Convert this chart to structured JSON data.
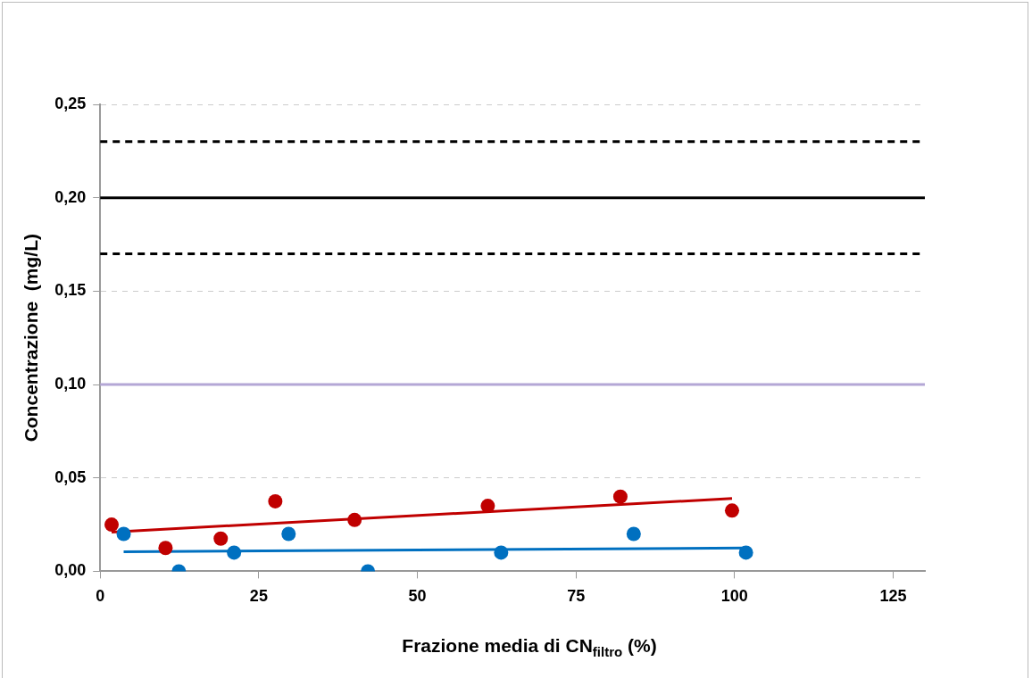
{
  "chart_data": {
    "type": "scatter",
    "xlabel": "Frazione media di CN$_{filtro}$ (%)",
    "ylabel": "Concentrazione  (mg/L)",
    "xlim": [
      0,
      130
    ],
    "xticks": [
      0,
      25,
      50,
      75,
      100,
      125
    ],
    "ylim": [
      0,
      0.25
    ],
    "yticks": [
      {
        "value": 0,
        "label": "0,00"
      },
      {
        "value": 0.05,
        "label": "0,05"
      },
      {
        "value": 0.1,
        "label": "0,10"
      },
      {
        "value": 0.15,
        "label": "0,15"
      },
      {
        "value": 0.2,
        "label": "0,20"
      },
      {
        "value": 0.25,
        "label": "0,25"
      }
    ],
    "grid": "y",
    "legend": false,
    "marker": "circle",
    "series": [
      {
        "color": "#c00000",
        "x": [
          1.8,
          10.3,
          19,
          27.6,
          40.1,
          61.1,
          82,
          99.6
        ],
        "values": [
          0.025,
          0.0125,
          0.0175,
          0.0375,
          0.0275,
          0.035,
          0.04,
          0.0325
        ]
      },
      {
        "color": "#0070c0",
        "x": [
          3.7,
          12.4,
          21.1,
          29.7,
          42.2,
          63.2,
          84.1,
          101.8
        ],
        "values": [
          0.02,
          0,
          0.01,
          0.02,
          0,
          0.01,
          0.02,
          0.01
        ]
      },
      {
        "type": "line",
        "color": "#c00000",
        "marker": "none",
        "x": [
          1.8,
          99.6
        ],
        "values": [
          0.021,
          0.039
        ]
      },
      {
        "type": "line",
        "color": "#0070c0",
        "marker": "none",
        "x": [
          3.7,
          101.8
        ],
        "values": [
          0.0105,
          0.0125
        ]
      }
    ],
    "ref_lines": [
      {
        "axis": "y",
        "value": 0.23,
        "color": "#000000",
        "line_style": "dashed"
      },
      {
        "axis": "y",
        "value": 0.2,
        "color": "#000000",
        "line_style": "solid"
      },
      {
        "axis": "y",
        "value": 0.17,
        "color": "#000000",
        "line_style": "dashed"
      },
      {
        "axis": "y",
        "value": 0.1,
        "color": "#b4a7d6",
        "line_style": "solid"
      }
    ]
  }
}
